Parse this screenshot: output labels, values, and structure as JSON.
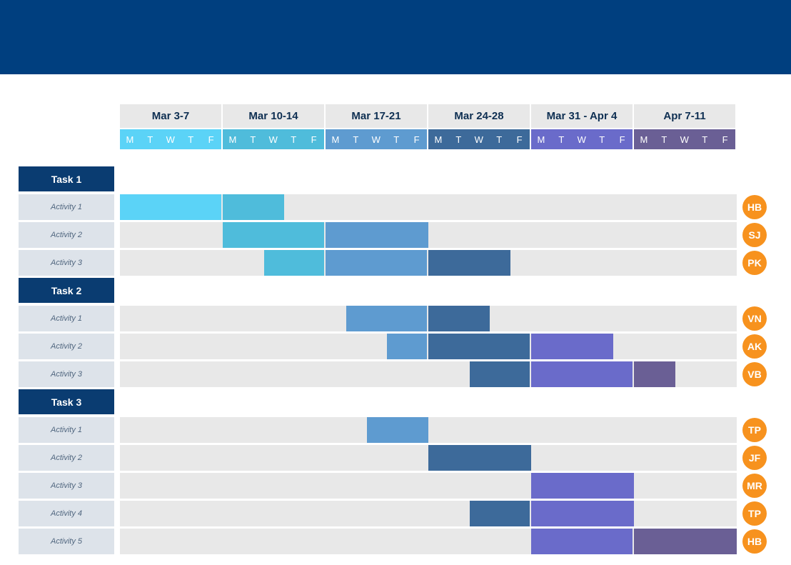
{
  "chart_data": {
    "type": "gantt",
    "weeks": [
      {
        "label": "Mar 3-7",
        "color": "#5bd3f7"
      },
      {
        "label": "Mar 10-14",
        "color": "#4fbcdb"
      },
      {
        "label": "Mar 17-21",
        "color": "#5e9bd0"
      },
      {
        "label": "Mar 24-28",
        "color": "#3d6a9a"
      },
      {
        "label": "Mar 31 - Apr 4",
        "color": "#6a6bca"
      },
      {
        "label": "Apr 7-11",
        "color": "#6a5f95"
      }
    ],
    "days": [
      "M",
      "T",
      "W",
      "T",
      "F"
    ],
    "tasks": [
      {
        "label": "Task 1",
        "activities": [
          {
            "label": "Activity 1",
            "owner": "HB",
            "start_day": 0,
            "end_day": 8
          },
          {
            "label": "Activity 2",
            "owner": "SJ",
            "start_day": 5,
            "end_day": 15
          },
          {
            "label": "Activity 3",
            "owner": "PK",
            "start_day": 7,
            "end_day": 19
          }
        ]
      },
      {
        "label": "Task 2",
        "activities": [
          {
            "label": "Activity 1",
            "owner": "VN",
            "start_day": 11,
            "end_day": 18
          },
          {
            "label": "Activity 2",
            "owner": "AK",
            "start_day": 13,
            "end_day": 24
          },
          {
            "label": "Activity 3",
            "owner": "VB",
            "start_day": 17,
            "end_day": 27
          }
        ]
      },
      {
        "label": "Task 3",
        "activities": [
          {
            "label": "Activity 1",
            "owner": "TP",
            "start_day": 12,
            "end_day": 15
          },
          {
            "label": "Activity 2",
            "owner": "JF",
            "start_day": 15,
            "end_day": 20
          },
          {
            "label": "Activity 3",
            "owner": "MR",
            "start_day": 20,
            "end_day": 25
          },
          {
            "label": "Activity 4",
            "owner": "TP",
            "start_day": 17,
            "end_day": 25
          },
          {
            "label": "Activity 5",
            "owner": "HB",
            "start_day": 20,
            "end_day": 30
          }
        ]
      }
    ],
    "colors": {
      "banner": "#003f7f",
      "task_label_bg": "#0a3c71",
      "activity_label_bg": "#dde3ea",
      "track_bg": "#e8e8e8",
      "avatar_bg": "#f7921e"
    }
  }
}
